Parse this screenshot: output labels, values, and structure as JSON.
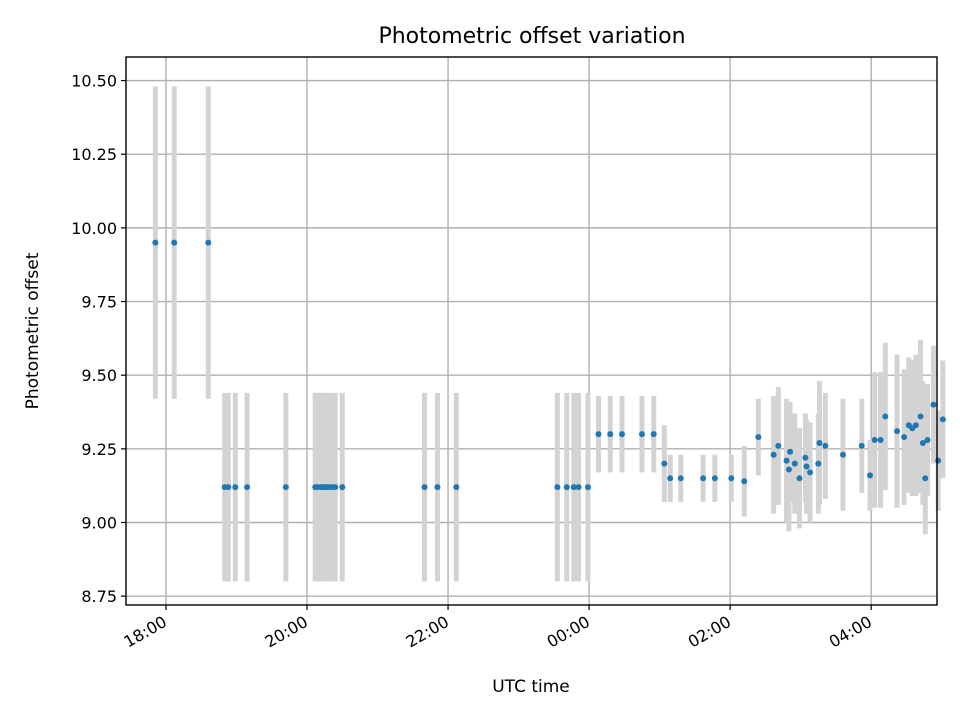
{
  "chart_data": {
    "type": "scatter",
    "title": "Photometric offset variation",
    "xlabel": "UTC time",
    "ylabel": "Photometric offset",
    "x_axis_kind": "time",
    "x_start_date": "day 1",
    "xlim": [
      "17:26",
      "23:59+04:56"
    ],
    "xlim_minutes": [
      1046,
      1736
    ],
    "ylim": [
      8.72,
      10.58
    ],
    "yticks": [
      8.75,
      9.0,
      9.25,
      9.5,
      9.75,
      10.0,
      10.25,
      10.5
    ],
    "ytick_labels": [
      "8.75",
      "9.00",
      "9.25",
      "9.50",
      "9.75",
      "10.00",
      "10.25",
      "10.50"
    ],
    "xticks_minutes": [
      1080,
      1200,
      1320,
      1440,
      1560,
      1680
    ],
    "xtick_labels": [
      "18:00",
      "20:00",
      "22:00",
      "00:00",
      "02:00",
      "04:00"
    ],
    "grid": true,
    "colors": {
      "points": "#1f77b4",
      "errorbars": "#d3d3d3"
    },
    "series": [
      {
        "x_minutes": [
          1071,
          1087,
          1116,
          1130,
          1133,
          1139,
          1149,
          1182,
          1207,
          1209,
          1212,
          1214,
          1216,
          1218,
          1221,
          1224,
          1230,
          1300,
          1311,
          1327,
          1413,
          1421,
          1427,
          1431,
          1439,
          1448,
          1458,
          1468,
          1485,
          1495,
          1504,
          1509,
          1518,
          1537,
          1547,
          1561,
          1572,
          1584,
          1597,
          1601,
          1608,
          1610,
          1611,
          1615,
          1619,
          1624,
          1625,
          1628,
          1635,
          1636,
          1641,
          1656,
          1672,
          1679,
          1683,
          1688,
          1692,
          1702,
          1708,
          1712,
          1715,
          1718,
          1722,
          1724,
          1726,
          1728,
          1733,
          1737,
          1741
        ],
        "y": [
          9.95,
          9.95,
          9.95,
          9.12,
          9.12,
          9.12,
          9.12,
          9.12,
          9.12,
          9.12,
          9.12,
          9.12,
          9.12,
          9.12,
          9.12,
          9.12,
          9.12,
          9.12,
          9.12,
          9.12,
          9.12,
          9.12,
          9.12,
          9.12,
          9.12,
          9.3,
          9.3,
          9.3,
          9.3,
          9.3,
          9.2,
          9.15,
          9.15,
          9.15,
          9.15,
          9.15,
          9.14,
          9.29,
          9.23,
          9.26,
          9.21,
          9.18,
          9.24,
          9.2,
          9.15,
          9.22,
          9.19,
          9.17,
          9.2,
          9.27,
          9.26,
          9.23,
          9.26,
          9.16,
          9.28,
          9.28,
          9.36,
          9.31,
          9.29,
          9.33,
          9.32,
          9.33,
          9.36,
          9.27,
          9.15,
          9.28,
          9.4,
          9.21,
          9.35
        ],
        "yerr": [
          0.53,
          0.53,
          0.53,
          0.32,
          0.32,
          0.32,
          0.32,
          0.32,
          0.32,
          0.32,
          0.32,
          0.32,
          0.32,
          0.32,
          0.32,
          0.32,
          0.32,
          0.32,
          0.32,
          0.32,
          0.32,
          0.32,
          0.32,
          0.32,
          0.32,
          0.13,
          0.13,
          0.13,
          0.13,
          0.13,
          0.13,
          0.08,
          0.08,
          0.08,
          0.08,
          0.08,
          0.12,
          0.13,
          0.2,
          0.2,
          0.21,
          0.21,
          0.17,
          0.17,
          0.17,
          0.15,
          0.16,
          0.17,
          0.17,
          0.21,
          0.18,
          0.19,
          0.16,
          0.12,
          0.23,
          0.23,
          0.25,
          0.26,
          0.23,
          0.23,
          0.23,
          0.24,
          0.26,
          0.21,
          0.19,
          0.19,
          0.2,
          0.17,
          0.2
        ]
      }
    ]
  }
}
